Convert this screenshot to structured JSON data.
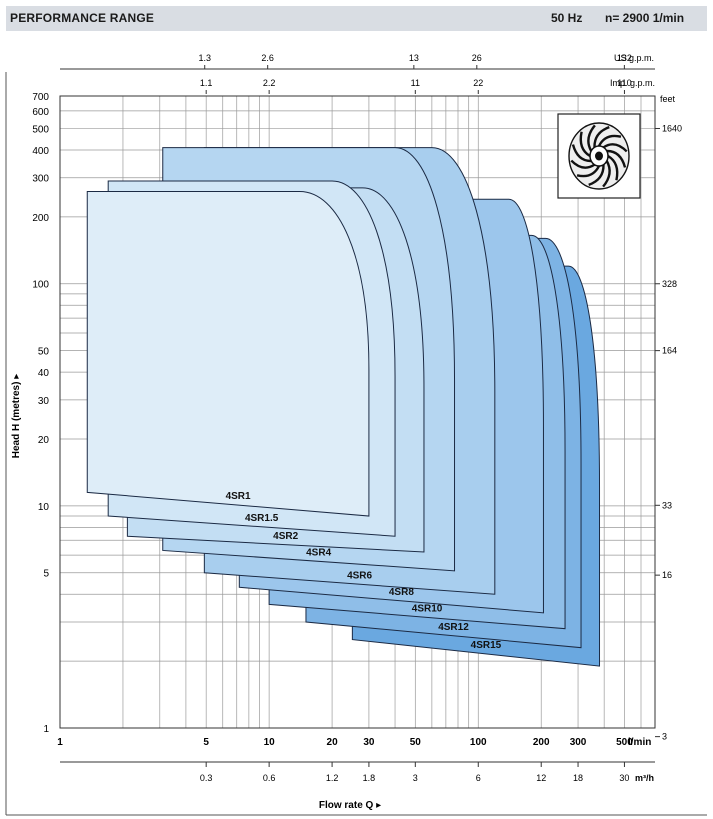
{
  "header": {
    "title": "PERFORMANCE RANGE",
    "frequency": "50 Hz",
    "speed": "n= 2900  1/min"
  },
  "chart_data": {
    "type": "area",
    "xscale": "log",
    "yscale": "log",
    "xlim": [
      1,
      700
    ],
    "ylim": [
      1,
      700
    ],
    "xlabel": "Flow rate  Q",
    "ylabel": "Head H (metres)",
    "x_unit": "l/min",
    "x_ticks": [
      1,
      5,
      10,
      20,
      30,
      50,
      100,
      200,
      300,
      500
    ],
    "y_ticks": [
      1,
      5,
      10,
      20,
      30,
      40,
      50,
      100,
      200,
      300,
      400,
      500,
      600,
      700
    ],
    "x_ticks_m3h": {
      "unit": "m³/h",
      "ticks": [
        {
          "label": "0.3",
          "value": 0.3
        },
        {
          "label": "0.6",
          "value": 0.6
        },
        {
          "label": "1.2",
          "value": 1.2
        },
        {
          "label": "1.8",
          "value": 1.8
        },
        {
          "label": "3",
          "value": 3
        },
        {
          "label": "6",
          "value": 6
        },
        {
          "label": "12",
          "value": 12
        },
        {
          "label": "18",
          "value": 18
        },
        {
          "label": "30",
          "value": 30
        }
      ]
    },
    "x_ticks_us_gpm": {
      "unit": "US g.p.m.",
      "ticks": [
        {
          "label": "1.3",
          "value": 1.3
        },
        {
          "label": "2.6",
          "value": 2.6
        },
        {
          "label": "13",
          "value": 13
        },
        {
          "label": "26",
          "value": 26
        },
        {
          "label": "132",
          "value": 132
        }
      ]
    },
    "x_ticks_imp_gpm": {
      "unit": "Imp. g.p.m.",
      "ticks": [
        {
          "label": "1.1",
          "value": 1.1
        },
        {
          "label": "2.2",
          "value": 2.2
        },
        {
          "label": "11",
          "value": 11
        },
        {
          "label": "22",
          "value": 22
        },
        {
          "label": "110",
          "value": 110
        }
      ]
    },
    "y_ticks_feet": {
      "unit": "feet",
      "ticks": [
        {
          "label": "1640",
          "value": 1640
        },
        {
          "label": "328",
          "value": 328
        },
        {
          "label": "164",
          "value": 164
        },
        {
          "label": "33",
          "value": 33
        },
        {
          "label": "16",
          "value": 16
        },
        {
          "label": "3",
          "value": 3
        }
      ]
    },
    "series": [
      {
        "name": "4SR15",
        "qmin": 25,
        "qmax": 380,
        "hmax": 120,
        "hmin_left": 2.5,
        "hmin_right": 1.9,
        "knee": 270,
        "color": "#6aa8e0"
      },
      {
        "name": "4SR12",
        "qmin": 15,
        "qmax": 310,
        "hmax": 160,
        "hmin_left": 3.0,
        "hmin_right": 2.3,
        "knee": 210,
        "color": "#7db3e4"
      },
      {
        "name": "4SR10",
        "qmin": 10,
        "qmax": 260,
        "hmax": 165,
        "hmin_left": 3.6,
        "hmin_right": 2.8,
        "knee": 180,
        "color": "#8fbee8"
      },
      {
        "name": "4SR8",
        "qmin": 7.2,
        "qmax": 205,
        "hmax": 240,
        "hmin_left": 4.3,
        "hmin_right": 3.3,
        "knee": 140,
        "color": "#9cc6ec"
      },
      {
        "name": "4SR6",
        "qmin": 4.9,
        "qmax": 120,
        "hmax": 410,
        "hmin_left": 5.0,
        "hmin_right": 4.0,
        "knee": 60,
        "color": "#a8ceee"
      },
      {
        "name": "4SR4",
        "qmin": 3.1,
        "qmax": 77,
        "hmax": 410,
        "hmin_left": 6.3,
        "hmin_right": 5.1,
        "knee": 40,
        "color": "#b5d6f1"
      },
      {
        "name": "4SR2",
        "qmin": 2.1,
        "qmax": 55,
        "hmax": 270,
        "hmin_left": 7.3,
        "hmin_right": 6.2,
        "knee": 28,
        "color": "#c3def3"
      },
      {
        "name": "4SR1.5",
        "qmin": 1.7,
        "qmax": 40,
        "hmax": 290,
        "hmin_left": 9.0,
        "hmin_right": 7.3,
        "knee": 20,
        "color": "#d1e6f6"
      },
      {
        "name": "4SR1",
        "qmin": 1.35,
        "qmax": 30,
        "hmax": 260,
        "hmin_left": 11.5,
        "hmin_right": 9.0,
        "knee": 14,
        "color": "#deedf8"
      }
    ]
  },
  "icons": {
    "impeller": "impeller-icon"
  }
}
